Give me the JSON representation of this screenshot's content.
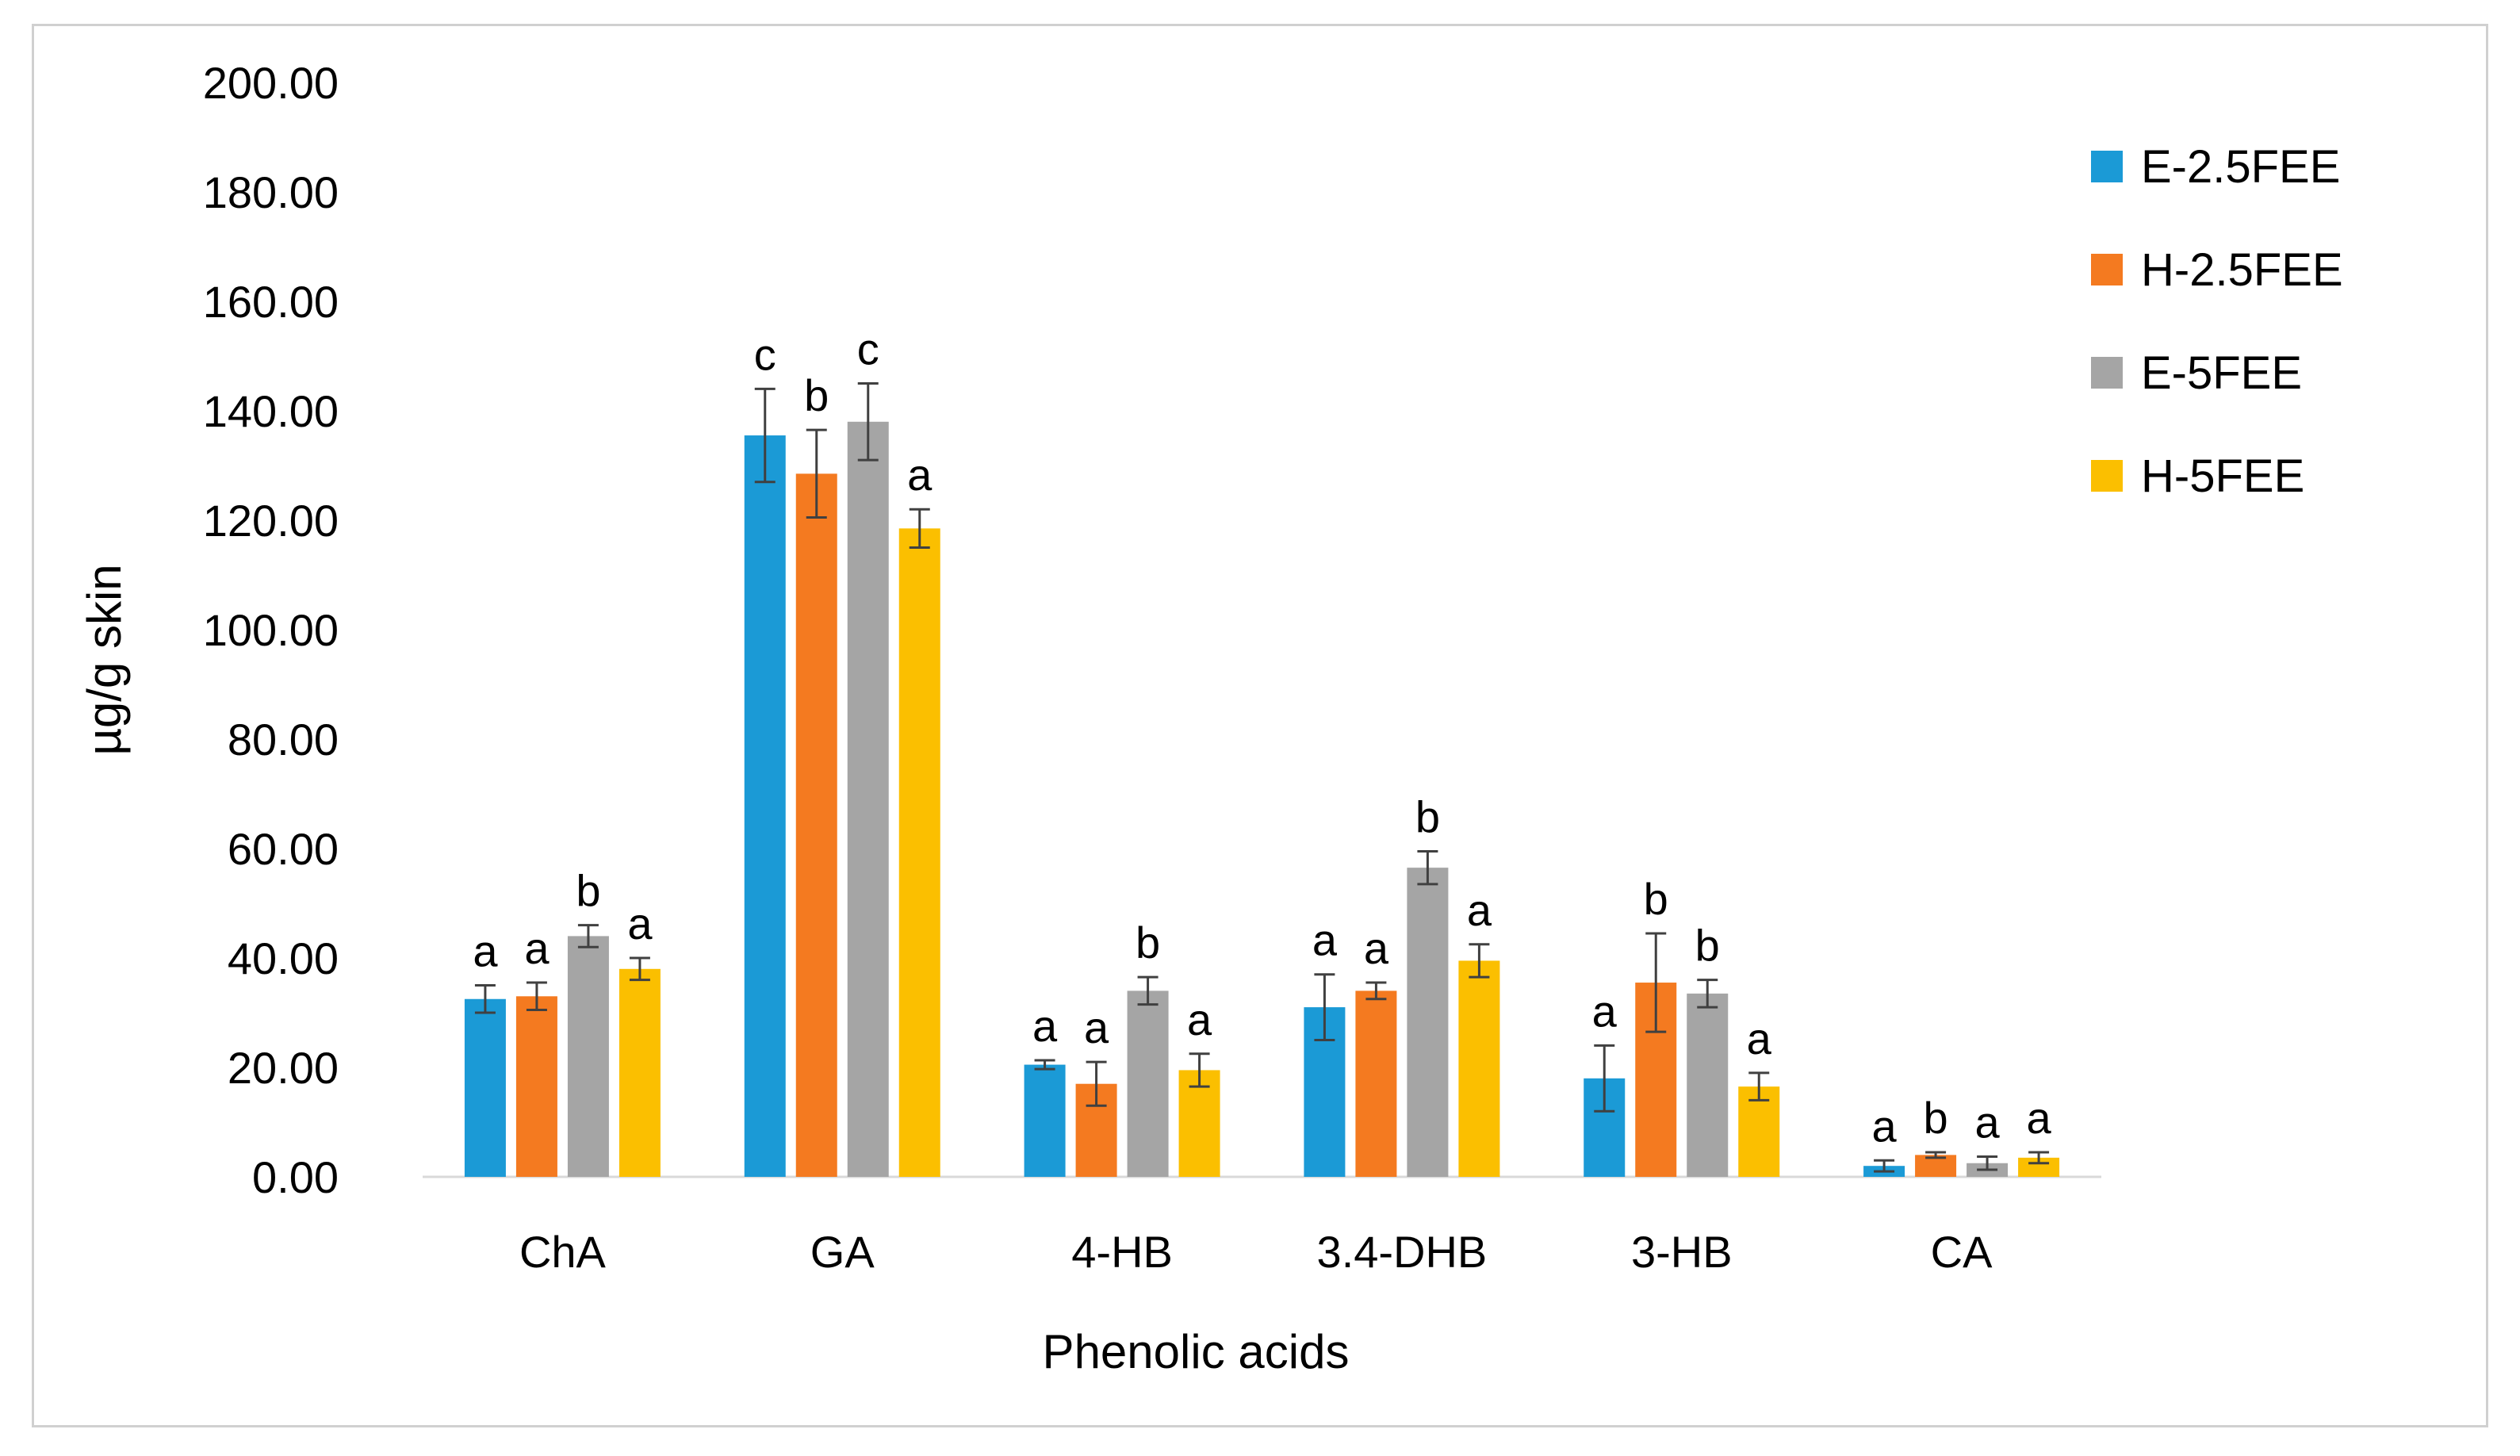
{
  "chart_data": {
    "type": "bar",
    "title": "",
    "xlabel": "Phenolic acids",
    "ylabel": "µg/g skin",
    "ylim": [
      0,
      200
    ],
    "yticks": [
      "0.00",
      "20.00",
      "40.00",
      "60.00",
      "80.00",
      "100.00",
      "120.00",
      "140.00",
      "160.00",
      "180.00",
      "200.00"
    ],
    "ytick_values": [
      0,
      20,
      40,
      60,
      80,
      100,
      120,
      140,
      160,
      180,
      200
    ],
    "categories": [
      "ChA",
      "GA",
      "4-HB",
      "3.4-DHB",
      "3-HB",
      "CA"
    ],
    "legend_position": "right",
    "series": [
      {
        "name": "E-2.5FEE",
        "color": "#1b9ad6",
        "values": [
          32.5,
          135.5,
          20.5,
          31.0,
          18.0,
          2.0
        ],
        "errors": [
          2.5,
          8.5,
          0.8,
          6.0,
          6.0,
          1.0
        ],
        "labels": [
          "a",
          "c",
          "a",
          "a",
          "a",
          "a"
        ]
      },
      {
        "name": "H-2.5FEE",
        "color": "#f47a20",
        "values": [
          33.0,
          128.5,
          17.0,
          34.0,
          35.5,
          4.0
        ],
        "errors": [
          2.5,
          8.0,
          4.0,
          1.5,
          9.0,
          0.5
        ],
        "labels": [
          "a",
          "b",
          "a",
          "a",
          "b",
          "b"
        ]
      },
      {
        "name": "E-5FEE",
        "color": "#a5a5a5",
        "values": [
          44.0,
          138.0,
          34.0,
          56.5,
          33.5,
          2.5
        ],
        "errors": [
          2.0,
          7.0,
          2.5,
          3.0,
          2.5,
          1.2
        ],
        "labels": [
          "b",
          "c",
          "b",
          "b",
          "b",
          "a"
        ]
      },
      {
        "name": "H-5FEE",
        "color": "#fbbf00",
        "values": [
          38.0,
          118.5,
          19.5,
          39.5,
          16.5,
          3.5
        ],
        "errors": [
          2.0,
          3.5,
          3.0,
          3.0,
          2.5,
          1.0
        ],
        "labels": [
          "a",
          "a",
          "a",
          "a",
          "a",
          "a"
        ]
      }
    ]
  }
}
